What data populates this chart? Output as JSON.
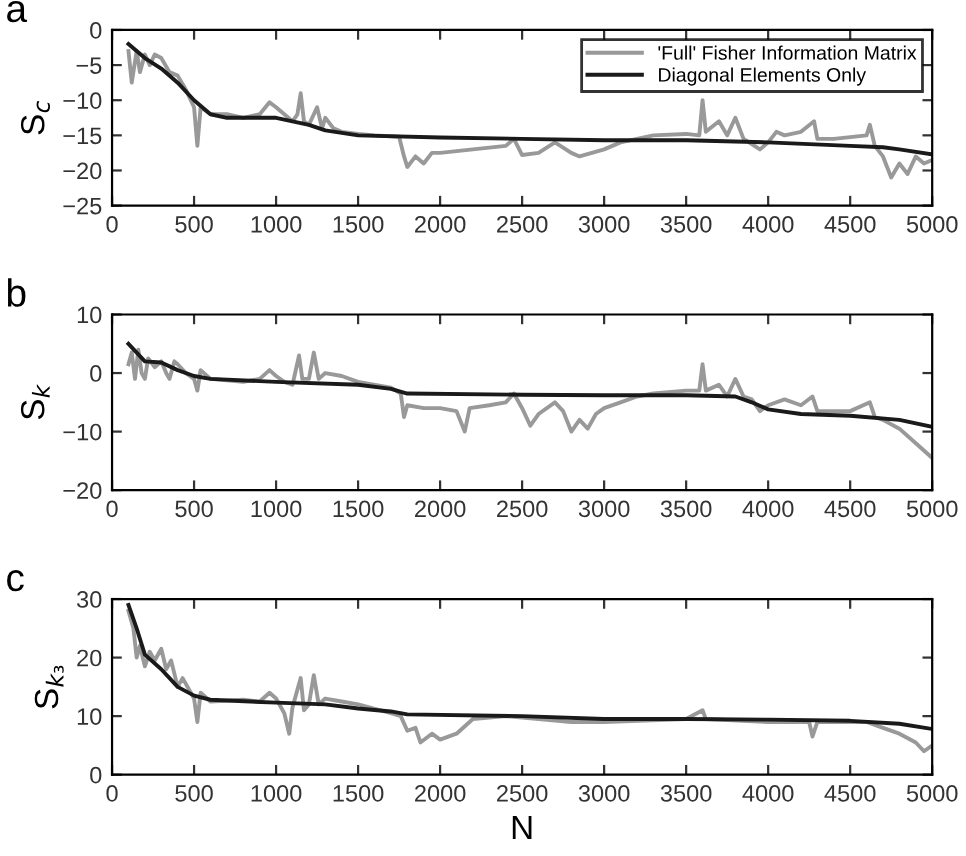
{
  "chart_data": [
    {
      "type": "line",
      "title": "a",
      "ylabel": "S$_{c}$",
      "xlim": [
        0,
        5000
      ],
      "xticks": [
        0,
        500,
        1000,
        1500,
        2000,
        2500,
        3000,
        3500,
        4000,
        4500,
        5000
      ],
      "ylim": [
        -25,
        0
      ],
      "yticks": [
        -25,
        -20,
        -15,
        -10,
        -5,
        0
      ],
      "grid": false,
      "legend": "top right",
      "series": [
        {
          "name": "'Full' Fisher Information Matrix",
          "color": "#999999",
          "x": [
            100,
            120,
            150,
            170,
            200,
            230,
            260,
            300,
            350,
            400,
            450,
            500,
            520,
            540,
            600,
            700,
            800,
            900,
            960,
            1000,
            1050,
            1100,
            1130,
            1150,
            1170,
            1200,
            1250,
            1280,
            1300,
            1350,
            1400,
            1500,
            1600,
            1750,
            1780,
            1800,
            1850,
            1900,
            1950,
            2000,
            2200,
            2400,
            2450,
            2500,
            2600,
            2700,
            2800,
            2850,
            3000,
            3100,
            3200,
            3300,
            3500,
            3580,
            3600,
            3620,
            3700,
            3750,
            3800,
            3850,
            3950,
            4000,
            4050,
            4100,
            4200,
            4280,
            4300,
            4400,
            4600,
            4620,
            4650,
            4700,
            4750,
            4800,
            4850,
            4900,
            4950,
            5000
          ],
          "values": [
            -3,
            -7.5,
            -3,
            -6,
            -3.5,
            -5,
            -3.5,
            -4,
            -6,
            -6.5,
            -8.5,
            -11,
            -16.5,
            -11,
            -12,
            -12,
            -12.5,
            -12,
            -10.3,
            -11,
            -12,
            -13,
            -12,
            -9,
            -13,
            -13.5,
            -11,
            -14,
            -12.5,
            -14,
            -14.5,
            -14.8,
            -15,
            -15.2,
            -18,
            -19.5,
            -18,
            -19,
            -17.5,
            -17.5,
            -17,
            -16.5,
            -15.5,
            -17.8,
            -17.5,
            -16,
            -17.5,
            -18,
            -17,
            -16,
            -15.5,
            -15,
            -14.8,
            -15,
            -10,
            -14.5,
            -13,
            -15,
            -12.5,
            -15.5,
            -17,
            -16,
            -14.5,
            -15,
            -14.5,
            -13,
            -15.5,
            -15.5,
            -15,
            -13.5,
            -16.5,
            -18,
            -21,
            -19,
            -20.5,
            -18,
            -19,
            -18.5
          ]
        },
        {
          "name": "Diagonal Elements Only",
          "color": "#1a1a1a",
          "x": [
            100,
            200,
            300,
            400,
            500,
            600,
            700,
            1000,
            1100,
            1200,
            1300,
            1500,
            2000,
            2500,
            3000,
            3500,
            4000,
            4500,
            4700,
            4800,
            5000
          ],
          "values": [
            -2,
            -4,
            -5.5,
            -7.5,
            -10,
            -12,
            -12.5,
            -12.5,
            -13,
            -13.5,
            -14.3,
            -15,
            -15.3,
            -15.5,
            -15.7,
            -15.7,
            -16,
            -16.5,
            -16.7,
            -17,
            -17.7
          ]
        }
      ]
    },
    {
      "type": "line",
      "title": "b",
      "ylabel": "S$_{k}$",
      "xlim": [
        0,
        5000
      ],
      "xticks": [
        0,
        500,
        1000,
        1500,
        2000,
        2500,
        3000,
        3500,
        4000,
        4500,
        5000
      ],
      "ylim": [
        -20,
        10
      ],
      "yticks": [
        -20,
        -10,
        0,
        10
      ],
      "grid": false,
      "series": [
        {
          "color": "#999999",
          "x": [
            100,
            120,
            140,
            160,
            180,
            200,
            220,
            260,
            300,
            330,
            350,
            380,
            400,
            450,
            500,
            520,
            540,
            600,
            800,
            900,
            960,
            1000,
            1050,
            1100,
            1140,
            1160,
            1200,
            1230,
            1260,
            1300,
            1400,
            1500,
            1700,
            1760,
            1780,
            1800,
            1900,
            2000,
            2100,
            2150,
            2180,
            2300,
            2400,
            2450,
            2500,
            2550,
            2600,
            2700,
            2750,
            2800,
            2850,
            2900,
            2950,
            3000,
            3100,
            3200,
            3300,
            3500,
            3580,
            3600,
            3620,
            3700,
            3750,
            3800,
            3850,
            3900,
            3950,
            4000,
            4100,
            4200,
            4270,
            4300,
            4500,
            4620,
            4650,
            4700,
            4800,
            4900,
            5000
          ],
          "values": [
            1.5,
            3.5,
            -1,
            4,
            0,
            -1,
            2.5,
            1,
            2,
            0,
            -1,
            2,
            1.5,
            0,
            -1,
            -3,
            0.5,
            -1,
            -1.5,
            -1,
            0.5,
            -0.5,
            -1.5,
            -2,
            3,
            -1,
            -1,
            3.5,
            -1,
            0,
            -0.5,
            -1.5,
            -2.5,
            -3.5,
            -7.5,
            -5.5,
            -6,
            -6,
            -6.5,
            -10,
            -6,
            -5.5,
            -5,
            -3.5,
            -6,
            -9,
            -7,
            -5,
            -6.5,
            -10,
            -8,
            -9.5,
            -7,
            -6,
            -5,
            -4,
            -3.5,
            -3,
            -3,
            1.5,
            -3,
            -2,
            -4,
            -1,
            -4,
            -4.5,
            -6.5,
            -5.5,
            -4.5,
            -5.5,
            -4,
            -6.5,
            -6.5,
            -5,
            -7.5,
            -8,
            -9.5,
            -12,
            -14.5
          ]
        },
        {
          "color": "#1a1a1a",
          "x": [
            100,
            200,
            300,
            400,
            500,
            600,
            1000,
            1500,
            1700,
            1800,
            2500,
            3000,
            3500,
            3800,
            3900,
            4000,
            4200,
            4500,
            4800,
            5000
          ],
          "values": [
            5,
            2,
            1.8,
            0.5,
            -0.5,
            -1,
            -1.5,
            -2,
            -2.7,
            -3.5,
            -3.7,
            -3.8,
            -3.8,
            -4,
            -5,
            -6.2,
            -7,
            -7.3,
            -8,
            -9.2
          ]
        }
      ]
    },
    {
      "type": "line",
      "title": "c",
      "ylabel": "S$_{k₃}$",
      "xlabel": "N",
      "xlim": [
        0,
        5000
      ],
      "xticks": [
        0,
        500,
        1000,
        1500,
        2000,
        2500,
        3000,
        3500,
        4000,
        4500,
        5000
      ],
      "ylim": [
        0,
        30
      ],
      "yticks": [
        0,
        10,
        20,
        30
      ],
      "grid": false,
      "series": [
        {
          "color": "#999999",
          "x": [
            100,
            130,
            150,
            170,
            200,
            230,
            260,
            300,
            330,
            360,
            400,
            430,
            500,
            520,
            540,
            600,
            800,
            900,
            960,
            1000,
            1050,
            1080,
            1100,
            1150,
            1170,
            1200,
            1230,
            1260,
            1300,
            1400,
            1500,
            1700,
            1760,
            1800,
            1850,
            1880,
            1950,
            2000,
            2100,
            2200,
            2400,
            2600,
            2800,
            3000,
            3500,
            3600,
            3620,
            4000,
            4250,
            4270,
            4300,
            4600,
            4700,
            4800,
            4900,
            4950,
            5000
          ],
          "values": [
            28,
            25,
            20,
            22,
            18.5,
            21,
            19.5,
            21.5,
            18,
            19.5,
            15,
            16.5,
            13,
            9,
            14,
            12.5,
            12.8,
            12.5,
            14,
            13,
            10.5,
            7,
            11.5,
            16.5,
            11,
            12,
            17,
            12,
            13,
            12.5,
            12,
            10.5,
            10,
            7.5,
            8,
            5.5,
            7,
            6,
            7,
            9.5,
            10,
            9.5,
            9,
            9,
            9.5,
            11,
            9.5,
            9,
            9,
            6.5,
            9,
            9,
            8,
            7,
            5.5,
            4,
            5
          ]
        },
        {
          "color": "#1a1a1a",
          "x": [
            100,
            150,
            200,
            300,
            400,
            500,
            600,
            1000,
            1300,
            1500,
            1700,
            1800,
            2500,
            3000,
            3500,
            4000,
            4500,
            4800,
            5000
          ],
          "values": [
            29,
            25,
            20.5,
            18,
            15,
            13.5,
            12.8,
            12.3,
            12,
            11.3,
            10.8,
            10.3,
            10,
            9.5,
            9.5,
            9.4,
            9.2,
            8.7,
            7.8
          ]
        }
      ]
    }
  ]
}
